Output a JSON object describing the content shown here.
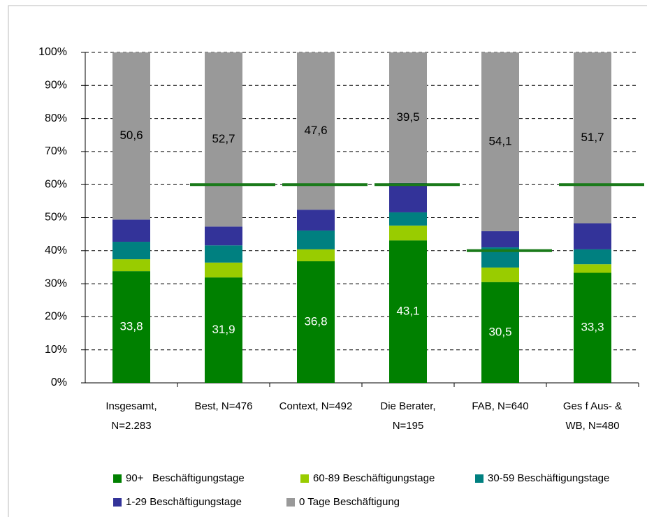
{
  "chart_data": {
    "type": "stacked_bar",
    "categories": [
      "Insgesamt,\nN=2.283",
      "Best, N=476",
      "Context, N=492",
      "Die Berater,\nN=195",
      "FAB, N=640",
      "Ges f Aus- &\nWB, N=480"
    ],
    "series": [
      {
        "name": "90+   Beschäftigungstage",
        "color": "#008000",
        "values": [
          33.8,
          31.9,
          36.8,
          43.1,
          30.5,
          33.3
        ],
        "value_labels": [
          "33,8",
          "31,9",
          "36,8",
          "43,1",
          "30,5",
          "33,3"
        ]
      },
      {
        "name": "60-89 Beschäftigungstage",
        "color": "#99cc00",
        "values": [
          3.6,
          4.5,
          3.6,
          4.5,
          4.4,
          2.6
        ]
      },
      {
        "name": "30-59 Beschäftigungstage",
        "color": "#008080",
        "values": [
          5.3,
          5.2,
          5.7,
          4.0,
          6.1,
          4.5
        ]
      },
      {
        "name": "1-29 Beschäftigungstage",
        "color": "#333399",
        "values": [
          6.7,
          5.7,
          6.3,
          8.9,
          4.9,
          7.9
        ]
      },
      {
        "name": "0 Tage Beschäftigung",
        "color": "#999999",
        "values": [
          50.6,
          52.7,
          47.6,
          39.5,
          54.1,
          51.7
        ],
        "value_labels": [
          "50,6",
          "52,7",
          "47,6",
          "39,5",
          "54,1",
          "51,7"
        ]
      }
    ],
    "targets": [
      null,
      60,
      60,
      60,
      40,
      60
    ],
    "target_color": "#1a7a1a",
    "ylim": [
      0,
      100
    ],
    "yticks": [
      {
        "value": 0,
        "label": "0%"
      },
      {
        "value": 10,
        "label": "10%"
      },
      {
        "value": 20,
        "label": "20%"
      },
      {
        "value": 30,
        "label": "30%"
      },
      {
        "value": 40,
        "label": "40%"
      },
      {
        "value": 50,
        "label": "50%"
      },
      {
        "value": 60,
        "label": "60%"
      },
      {
        "value": 70,
        "label": "70%"
      },
      {
        "value": 80,
        "label": "80%"
      },
      {
        "value": 90,
        "label": "90%"
      },
      {
        "value": 100,
        "label": "100%"
      }
    ],
    "grid": true
  }
}
